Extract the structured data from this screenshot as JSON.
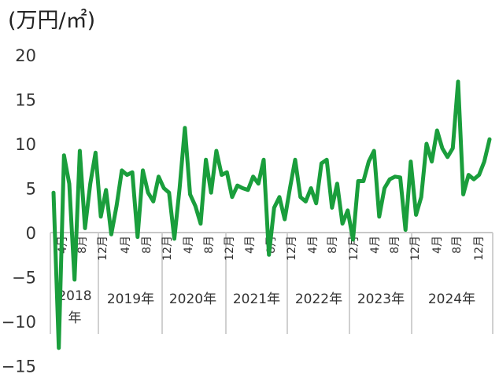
{
  "chart_data": {
    "type": "line",
    "unit_label": "(万円/㎡)",
    "ylim": [
      -15,
      20
    ],
    "y_ticks": [
      20,
      15,
      10,
      5,
      0,
      -5,
      -10,
      -15
    ],
    "series": [
      {
        "color": "#1a9e3c",
        "values": [
          4.5,
          -13.0,
          8.7,
          5.5,
          -5.3,
          9.2,
          0.5,
          5.5,
          9.0,
          1.8,
          4.8,
          -0.2,
          3.0,
          7.0,
          6.5,
          6.8,
          -0.5,
          7.0,
          4.5,
          3.5,
          6.3,
          5.0,
          4.5,
          -0.7,
          5.0,
          11.8,
          4.3,
          3.0,
          1.0,
          8.2,
          4.5,
          9.2,
          6.5,
          6.8,
          4.0,
          5.3,
          5.0,
          4.8,
          6.3,
          5.5,
          8.2,
          -2.5,
          2.8,
          4.0,
          1.5,
          5.0,
          8.2,
          4.0,
          3.5,
          5.0,
          3.3,
          7.8,
          8.2,
          2.8,
          5.5,
          1.0,
          2.5,
          -0.8,
          5.8,
          5.8,
          8.0,
          9.2,
          1.8,
          5.0,
          6.0,
          6.3,
          6.2,
          0.3,
          8.0,
          2.0,
          4.0,
          10.0,
          8.0,
          11.5,
          9.5,
          8.5,
          9.5,
          17.0,
          4.3,
          6.5,
          6.0,
          6.5,
          8.0,
          10.5
        ]
      }
    ],
    "x_month_labels": [
      "4月",
      "8月",
      "12月",
      "4月",
      "8月",
      "12月",
      "4月",
      "8月",
      "12月",
      "4月",
      "8月",
      "12月",
      "4月",
      "8月",
      "12月",
      "4月",
      "8月",
      "12月",
      "4月",
      "8月",
      "12月"
    ],
    "x_year_labels": [
      "2018年",
      "2019年",
      "2020年",
      "2021年",
      "2022年",
      "2023年",
      "2024年"
    ]
  }
}
